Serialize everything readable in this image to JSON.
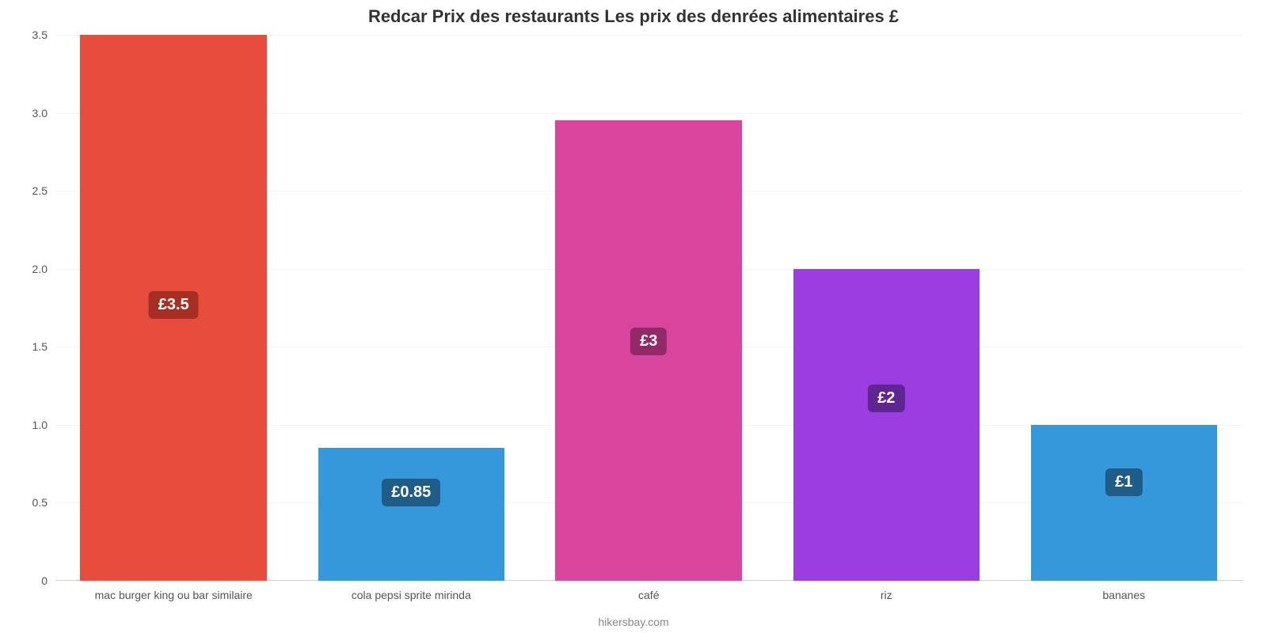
{
  "chart": {
    "type": "bar",
    "title": "Redcar Prix des restaurants Les prix des denrées alimentaires £",
    "title_fontsize": 22,
    "title_color": "#333333",
    "background_color": "#ffffff",
    "grid_color": "#f4f4f4",
    "baseline_color": "#d0d0d0",
    "axis_label_color": "#555555",
    "axis_label_fontsize": 14,
    "ylim": [
      0,
      3.5
    ],
    "yticks": [
      0,
      0.5,
      1.0,
      1.5,
      2.0,
      2.5,
      3.0,
      3.5
    ],
    "ytick_labels": [
      "0",
      "0.5",
      "1.0",
      "1.5",
      "2.0",
      "2.5",
      "3.0",
      "3.5"
    ],
    "bar_width_pct": 15.7,
    "bar_gap_pct": 4.3,
    "bars_left_offset_pct": 2.1,
    "badge_fontsize": 20,
    "badge_text_color": "#ffffff",
    "categories": [
      {
        "label": "mac burger king ou bar similaire",
        "value": 3.5,
        "value_label": "£3.5",
        "color": "#e74c3c",
        "badge_color": "#a72e22",
        "badge_top_pct": 47
      },
      {
        "label": "cola pepsi sprite mirinda",
        "value": 0.85,
        "value_label": "£0.85",
        "color": "#3498db",
        "badge_color": "#1f5d88",
        "badge_top_pct": 23
      },
      {
        "label": "café",
        "value": 2.95,
        "value_label": "£3",
        "color": "#d9449c",
        "badge_color": "#922a68",
        "badge_top_pct": 45
      },
      {
        "label": "riz",
        "value": 2.0,
        "value_label": "£2",
        "color": "#9b3de0",
        "badge_color": "#5f2590",
        "badge_top_pct": 37
      },
      {
        "label": "bananes",
        "value": 1.0,
        "value_label": "£1",
        "color": "#3498db",
        "badge_color": "#1f5d88",
        "badge_top_pct": 28
      }
    ],
    "source_label": "hikersbay.com",
    "source_color": "#888888",
    "source_fontsize": 14
  }
}
